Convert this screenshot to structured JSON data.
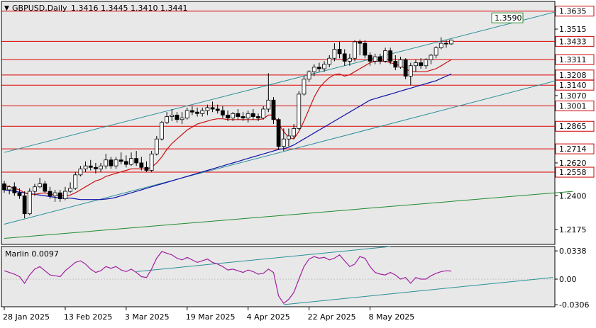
{
  "header": {
    "symbol_text": "GBPUSD,Daily",
    "ohlc_text": "1.3416 1.3445 1.3410 1.3441"
  },
  "indicator": {
    "label": "Marlin 0.0097",
    "levels": [
      "0.0338",
      "0.00",
      "-0.0306"
    ]
  },
  "colors": {
    "background": "#e8e8e8",
    "level_line": "#dd0000",
    "channel_line": "#2a8f9a",
    "long_trend_line": "#1f8a2e",
    "ma_fast": "#cc1111",
    "ma_slow": "#1010aa",
    "oscillator": "#a020a0",
    "candle_up": "#ffffff",
    "candle_down": "#000000",
    "label_box_red": "#d00000",
    "label_box_green": "#2a8f2a"
  },
  "chart_data": {
    "type": "candlestick",
    "symbol": "GBPUSD",
    "timeframe": "Daily",
    "y_ticks": [
      "1.3635",
      "1.3515",
      "1.3433",
      "1.3311",
      "1.3208",
      "1.3140",
      "1.3070",
      "1.3001",
      "1.2865",
      "1.2714",
      "1.2620",
      "1.2558",
      "1.2400",
      "1.2175"
    ],
    "ylim": [
      1.2075,
      1.37
    ],
    "x_ticks": [
      "28 Jan 2025",
      "13 Feb 2025",
      "3 Mar 2025",
      "19 Mar 2025",
      "4 Apr 2025",
      "22 Apr 2025",
      "8 May 2025"
    ],
    "horizontal_levels": [
      1.3635,
      1.3433,
      1.3311,
      1.3208,
      1.314,
      1.3001,
      1.2865,
      1.2714,
      1.2558
    ],
    "level_labels": [
      "1.3635",
      "1.3433",
      "1.3311",
      "1.3208",
      "1.3140",
      "1.3001",
      "1.2865",
      "1.2714",
      "1.2558"
    ],
    "channel_label": "1.3590",
    "candles": [
      [
        1.248,
        1.25,
        1.242,
        1.244
      ],
      [
        1.244,
        1.247,
        1.241,
        1.246
      ],
      [
        1.246,
        1.249,
        1.24,
        1.242
      ],
      [
        1.242,
        1.245,
        1.238,
        1.24
      ],
      [
        1.24,
        1.243,
        1.225,
        1.228
      ],
      [
        1.228,
        1.245,
        1.227,
        1.243
      ],
      [
        1.243,
        1.248,
        1.24,
        1.246
      ],
      [
        1.246,
        1.252,
        1.245,
        1.248
      ],
      [
        1.248,
        1.25,
        1.242,
        1.243
      ],
      [
        1.243,
        1.246,
        1.238,
        1.24
      ],
      [
        1.24,
        1.244,
        1.236,
        1.242
      ],
      [
        1.242,
        1.244,
        1.236,
        1.238
      ],
      [
        1.238,
        1.246,
        1.237,
        1.243
      ],
      [
        1.243,
        1.249,
        1.242,
        1.245
      ],
      [
        1.245,
        1.256,
        1.244,
        1.254
      ],
      [
        1.254,
        1.26,
        1.253,
        1.258
      ],
      [
        1.258,
        1.263,
        1.256,
        1.26
      ],
      [
        1.26,
        1.264,
        1.257,
        1.259
      ],
      [
        1.259,
        1.262,
        1.255,
        1.258
      ],
      [
        1.258,
        1.262,
        1.256,
        1.26
      ],
      [
        1.26,
        1.268,
        1.258,
        1.264
      ],
      [
        1.264,
        1.266,
        1.258,
        1.26
      ],
      [
        1.26,
        1.266,
        1.258,
        1.264
      ],
      [
        1.264,
        1.269,
        1.261,
        1.263
      ],
      [
        1.263,
        1.267,
        1.259,
        1.261
      ],
      [
        1.261,
        1.269,
        1.26,
        1.265
      ],
      [
        1.265,
        1.27,
        1.26,
        1.262
      ],
      [
        1.262,
        1.266,
        1.257,
        1.259
      ],
      [
        1.259,
        1.263,
        1.256,
        1.257
      ],
      [
        1.257,
        1.27,
        1.256,
        1.268
      ],
      [
        1.268,
        1.28,
        1.267,
        1.278
      ],
      [
        1.278,
        1.29,
        1.277,
        1.289
      ],
      [
        1.289,
        1.296,
        1.288,
        1.293
      ],
      [
        1.293,
        1.298,
        1.29,
        1.294
      ],
      [
        1.294,
        1.296,
        1.289,
        1.291
      ],
      [
        1.291,
        1.296,
        1.288,
        1.292
      ],
      [
        1.292,
        1.299,
        1.291,
        1.297
      ],
      [
        1.297,
        1.3,
        1.294,
        1.296
      ],
      [
        1.296,
        1.299,
        1.293,
        1.295
      ],
      [
        1.295,
        1.299,
        1.293,
        1.297
      ],
      [
        1.297,
        1.301,
        1.294,
        1.299
      ],
      [
        1.299,
        1.303,
        1.296,
        1.298
      ],
      [
        1.298,
        1.301,
        1.295,
        1.297
      ],
      [
        1.297,
        1.3,
        1.292,
        1.294
      ],
      [
        1.294,
        1.297,
        1.29,
        1.292
      ],
      [
        1.292,
        1.296,
        1.29,
        1.295
      ],
      [
        1.295,
        1.298,
        1.291,
        1.293
      ],
      [
        1.293,
        1.296,
        1.29,
        1.292
      ],
      [
        1.292,
        1.297,
        1.289,
        1.295
      ],
      [
        1.295,
        1.298,
        1.291,
        1.293
      ],
      [
        1.293,
        1.295,
        1.29,
        1.292
      ],
      [
        1.292,
        1.3,
        1.291,
        1.298
      ],
      [
        1.298,
        1.322,
        1.296,
        1.304
      ],
      [
        1.304,
        1.306,
        1.288,
        1.291
      ],
      [
        1.291,
        1.292,
        1.271,
        1.273
      ],
      [
        1.273,
        1.285,
        1.27,
        1.278
      ],
      [
        1.278,
        1.285,
        1.273,
        1.28
      ],
      [
        1.28,
        1.288,
        1.278,
        1.285
      ],
      [
        1.285,
        1.31,
        1.284,
        1.308
      ],
      [
        1.308,
        1.32,
        1.307,
        1.318
      ],
      [
        1.318,
        1.324,
        1.316,
        1.323
      ],
      [
        1.323,
        1.328,
        1.32,
        1.326
      ],
      [
        1.326,
        1.329,
        1.323,
        1.325
      ],
      [
        1.325,
        1.33,
        1.323,
        1.328
      ],
      [
        1.328,
        1.334,
        1.326,
        1.332
      ],
      [
        1.332,
        1.342,
        1.33,
        1.338
      ],
      [
        1.338,
        1.343,
        1.332,
        1.335
      ],
      [
        1.335,
        1.338,
        1.327,
        1.33
      ],
      [
        1.33,
        1.335,
        1.327,
        1.332
      ],
      [
        1.332,
        1.344,
        1.33,
        1.343
      ],
      [
        1.343,
        1.3445,
        1.334,
        1.342
      ],
      [
        1.342,
        1.344,
        1.332,
        1.334
      ],
      [
        1.334,
        1.336,
        1.327,
        1.33
      ],
      [
        1.33,
        1.335,
        1.328,
        1.333
      ],
      [
        1.333,
        1.335,
        1.328,
        1.33
      ],
      [
        1.33,
        1.339,
        1.329,
        1.337
      ],
      [
        1.337,
        1.339,
        1.328,
        1.33
      ],
      [
        1.33,
        1.334,
        1.324,
        1.326
      ],
      [
        1.326,
        1.333,
        1.325,
        1.331
      ],
      [
        1.331,
        1.332,
        1.318,
        1.32
      ],
      [
        1.32,
        1.329,
        1.314,
        1.327
      ],
      [
        1.327,
        1.331,
        1.323,
        1.329
      ],
      [
        1.329,
        1.332,
        1.325,
        1.327
      ],
      [
        1.327,
        1.332,
        1.325,
        1.331
      ],
      [
        1.331,
        1.335,
        1.328,
        1.334
      ],
      [
        1.334,
        1.34,
        1.332,
        1.339
      ],
      [
        1.339,
        1.346,
        1.338,
        1.342
      ],
      [
        1.342,
        1.344,
        1.339,
        1.3416
      ],
      [
        1.3416,
        1.3445,
        1.341,
        1.3441
      ]
    ],
    "ma_fast": [
      1.247,
      1.246,
      1.245,
      1.244,
      1.242,
      1.241,
      1.241,
      1.2415,
      1.242,
      1.241,
      1.2405,
      1.24,
      1.24,
      1.2405,
      1.242,
      1.244,
      1.246,
      1.248,
      1.25,
      1.251,
      1.253,
      1.254,
      1.255,
      1.256,
      1.257,
      1.258,
      1.258,
      1.258,
      1.258,
      1.259,
      1.262,
      1.266,
      1.271,
      1.275,
      1.278,
      1.281,
      1.284,
      1.286,
      1.288,
      1.289,
      1.29,
      1.291,
      1.2915,
      1.2915,
      1.291,
      1.291,
      1.291,
      1.291,
      1.291,
      1.291,
      1.291,
      1.2915,
      1.294,
      1.294,
      1.288,
      1.283,
      1.279,
      1.278,
      1.283,
      1.29,
      1.298,
      1.306,
      1.312,
      1.316,
      1.319,
      1.321,
      1.3215,
      1.32,
      1.321,
      1.323,
      1.325,
      1.327,
      1.329,
      1.33,
      1.33,
      1.33,
      1.329,
      1.328,
      1.327,
      1.325,
      1.323,
      1.323,
      1.323,
      1.323,
      1.324,
      1.325,
      1.327,
      1.329,
      1.331
    ],
    "ma_slow": [
      1.244,
      1.2435,
      1.243,
      1.2425,
      1.242,
      1.2415,
      1.241,
      1.2405,
      1.24,
      1.2395,
      1.239,
      1.2385,
      1.2385,
      1.2385,
      1.238,
      1.2375,
      1.2375,
      1.2375,
      1.2375,
      1.2375,
      1.2378,
      1.2382,
      1.239,
      1.24,
      1.241,
      1.242,
      1.243,
      1.244,
      1.245,
      1.246,
      1.247,
      1.248,
      1.249,
      1.25,
      1.251,
      1.252,
      1.253,
      1.254,
      1.255,
      1.256,
      1.257,
      1.258,
      1.259,
      1.26,
      1.261,
      1.262,
      1.263,
      1.264,
      1.265,
      1.266,
      1.267,
      1.268,
      1.269,
      1.27,
      1.271,
      1.2715,
      1.2725,
      1.274,
      1.276,
      1.278,
      1.28,
      1.282,
      1.284,
      1.286,
      1.288,
      1.29,
      1.292,
      1.294,
      1.296,
      1.298,
      1.3,
      1.302,
      1.304,
      1.305,
      1.306,
      1.307,
      1.308,
      1.309,
      1.31,
      1.311,
      1.312,
      1.313,
      1.314,
      1.315,
      1.316,
      1.317,
      1.3185,
      1.32,
      1.3215
    ],
    "oscillator": {
      "name": "Marlin",
      "ylim": [
        -0.033,
        0.039
      ],
      "values": [
        0.01,
        0.008,
        0.006,
        0.003,
        -0.005,
        0.005,
        0.012,
        0.015,
        0.01,
        0.005,
        0.004,
        0.003,
        0.01,
        0.015,
        0.02,
        0.022,
        0.018,
        0.012,
        0.008,
        0.01,
        0.015,
        0.013,
        0.015,
        0.011,
        0.009,
        0.012,
        0.008,
        0.003,
        0.002,
        0.012,
        0.025,
        0.033,
        0.031,
        0.029,
        0.025,
        0.023,
        0.026,
        0.023,
        0.02,
        0.022,
        0.024,
        0.02,
        0.018,
        0.015,
        0.011,
        0.012,
        0.01,
        0.008,
        0.011,
        0.009,
        0.006,
        0.007,
        0.012,
        0.008,
        -0.02,
        -0.029,
        -0.024,
        -0.016,
        0.0,
        0.015,
        0.024,
        0.027,
        0.025,
        0.026,
        0.023,
        0.025,
        0.029,
        0.022,
        0.015,
        0.018,
        0.027,
        0.025,
        0.015,
        0.008,
        0.006,
        0.005,
        0.008,
        0.005,
        0.0,
        0.002,
        -0.005,
        0.002,
        0.0,
        0.0,
        0.004,
        0.007,
        0.009,
        0.01,
        0.0097
      ]
    }
  }
}
